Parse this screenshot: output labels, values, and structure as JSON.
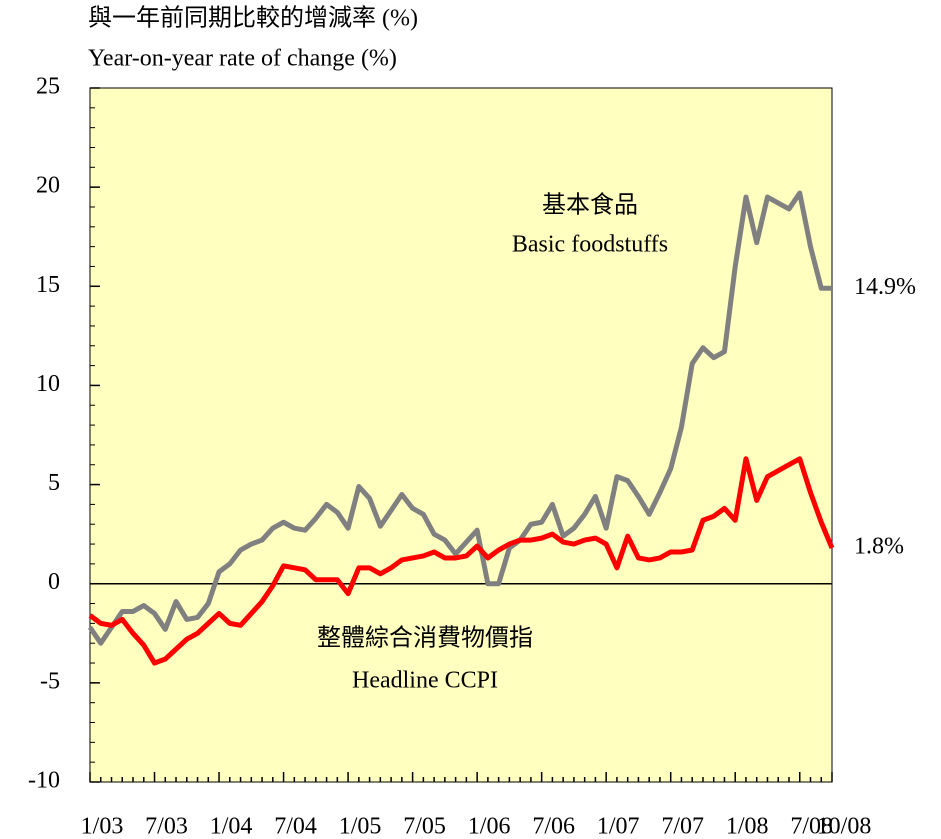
{
  "chart_data": {
    "type": "line",
    "title_zh": "與一年前同期比較的增減率 (%)",
    "title": "Year-on-year rate of change (%)",
    "categories": [
      "1/03",
      null,
      null,
      null,
      null,
      null,
      "7/03",
      null,
      null,
      null,
      null,
      null,
      "1/04",
      null,
      null,
      null,
      null,
      null,
      "7/04",
      null,
      null,
      null,
      null,
      null,
      "1/05",
      null,
      null,
      null,
      null,
      null,
      "7/05",
      null,
      null,
      null,
      null,
      null,
      "1/06",
      null,
      null,
      null,
      null,
      null,
      "7/06",
      null,
      null,
      null,
      null,
      null,
      "1/07",
      null,
      null,
      null,
      null,
      null,
      "7/07",
      null,
      null,
      null,
      null,
      null,
      "1/08",
      null,
      null,
      null,
      null,
      null,
      "7/08",
      null,
      null,
      "10/08"
    ],
    "series": [
      {
        "name": "Basic foodstuffs",
        "name_zh": "基本食品",
        "color": "#808080",
        "values": [
          -2.2,
          -3.0,
          -2.2,
          -1.4,
          -1.4,
          -1.1,
          -1.5,
          -2.3,
          -0.9,
          -1.8,
          -1.7,
          -1.0,
          0.6,
          1.0,
          1.7,
          2.0,
          2.2,
          2.8,
          3.1,
          2.8,
          2.7,
          3.3,
          4.0,
          3.6,
          2.8,
          4.9,
          4.3,
          2.9,
          3.7,
          4.5,
          3.8,
          3.5,
          2.5,
          2.2,
          1.5,
          2.1,
          2.7,
          0.0,
          0.0,
          1.8,
          2.2,
          3.0,
          3.1,
          4.0,
          2.4,
          2.8,
          3.5,
          4.4,
          2.8,
          5.4,
          5.2,
          4.4,
          3.5,
          4.6,
          5.8,
          7.9,
          11.1,
          11.9,
          11.4,
          11.7,
          16.0,
          19.5,
          17.2,
          19.5,
          19.2,
          18.9,
          19.7,
          17.0,
          14.9,
          14.9
        ],
        "value_labels": [
          null,
          null,
          null,
          null,
          null,
          null,
          null,
          null,
          null,
          null,
          null,
          null,
          null,
          null,
          null,
          null,
          null,
          null,
          null,
          null,
          null,
          null,
          null,
          null,
          null,
          null,
          null,
          null,
          null,
          null,
          null,
          null,
          null,
          null,
          null,
          null,
          null,
          null,
          null,
          null,
          null,
          null,
          null,
          null,
          null,
          null,
          null,
          null,
          null,
          null,
          null,
          null,
          null,
          null,
          null,
          null,
          null,
          null,
          null,
          null,
          null,
          null,
          null,
          null,
          null,
          null,
          null,
          null,
          null,
          "14.9%"
        ]
      },
      {
        "name": "Headline CCPI",
        "name_zh": "整體綜合消費物價指",
        "color": "#ff0000",
        "values": [
          -1.6,
          -2.0,
          -2.1,
          -1.8,
          -2.5,
          -3.1,
          -4.0,
          -3.8,
          -3.3,
          -2.8,
          -2.5,
          -2.0,
          -1.5,
          -2.0,
          -2.1,
          -1.5,
          -0.9,
          -0.1,
          0.9,
          0.8,
          0.7,
          0.2,
          0.2,
          0.2,
          -0.5,
          0.8,
          0.8,
          0.5,
          0.8,
          1.2,
          1.3,
          1.4,
          1.6,
          1.3,
          1.3,
          1.4,
          1.9,
          1.3,
          1.7,
          2.0,
          2.2,
          2.2,
          2.3,
          2.5,
          2.1,
          2.0,
          2.2,
          2.3,
          2.0,
          0.8,
          2.4,
          1.3,
          1.2,
          1.3,
          1.6,
          1.6,
          1.7,
          3.2,
          3.4,
          3.8,
          3.2,
          6.3,
          4.2,
          5.4,
          5.7,
          6.0,
          6.3,
          4.6,
          3.1,
          1.8
        ],
        "value_labels": [
          null,
          null,
          null,
          null,
          null,
          null,
          null,
          null,
          null,
          null,
          null,
          null,
          null,
          null,
          null,
          null,
          null,
          null,
          null,
          null,
          null,
          null,
          null,
          null,
          null,
          null,
          null,
          null,
          null,
          null,
          null,
          null,
          null,
          null,
          null,
          null,
          null,
          null,
          null,
          null,
          null,
          null,
          null,
          null,
          null,
          null,
          null,
          null,
          null,
          null,
          null,
          null,
          null,
          null,
          null,
          null,
          null,
          null,
          null,
          null,
          null,
          null,
          null,
          null,
          null,
          null,
          null,
          null,
          null,
          "1.8%"
        ]
      }
    ],
    "ylim": [
      -10,
      25
    ],
    "yticks": [
      -10,
      -5,
      0,
      5,
      10,
      15,
      20,
      25
    ],
    "background": "#ffffc0"
  }
}
